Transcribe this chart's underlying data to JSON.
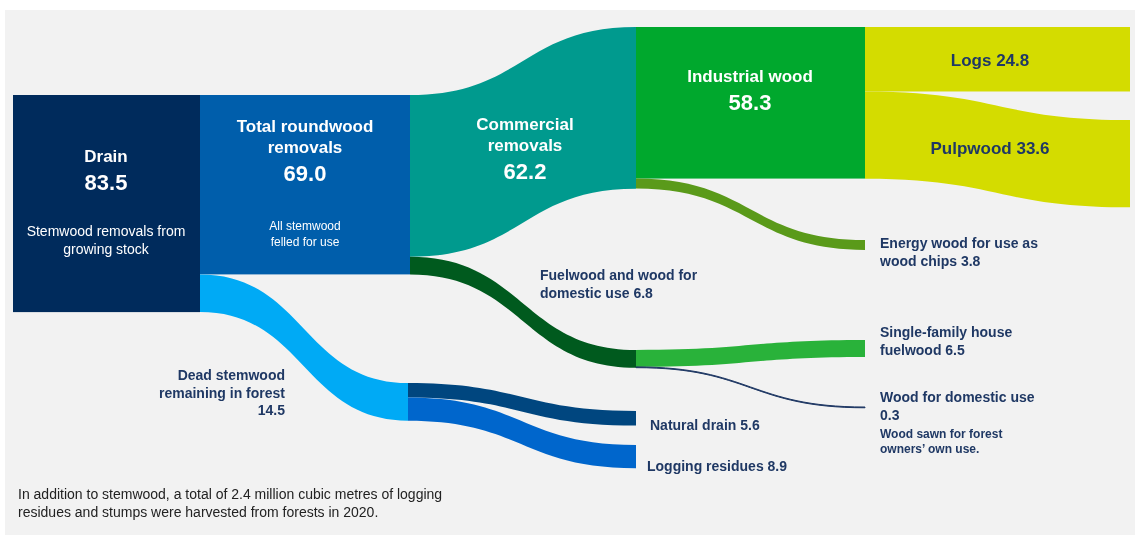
{
  "chart_data": {
    "type": "other",
    "categories": [
      "Drain",
      "Total roundwood removals",
      "Dead stemwood remaining in forest",
      "Commercial removals",
      "Fuelwood and wood for domestic use",
      "Industrial wood",
      "Energy wood for use as wood chips",
      "Logs",
      "Pulpwood",
      "Single-family house fuelwood",
      "Wood for domestic use",
      "Natural drain",
      "Logging residues"
    ],
    "values": [
      83.5,
      69.0,
      14.5,
      62.2,
      6.8,
      58.3,
      3.8,
      24.8,
      33.6,
      6.5,
      0.3,
      5.6,
      8.9
    ],
    "value_labels": [
      "83.5",
      "69.0",
      "14.5",
      "62.2",
      "6.8",
      "58.3",
      "3.8",
      "24.8",
      "33.6",
      "6.5",
      "0.3",
      "5.6",
      "8.9"
    ],
    "colors": [
      "#002b5c",
      "#005eab",
      "#00aaf5",
      "#009a8e",
      "#005a1e",
      "#00a82d",
      "#5a9a1a",
      "#d4dc00",
      "#d4dc00",
      "#29b23a",
      "#1f3864",
      "#00467f",
      "#0066cc"
    ],
    "annotations": [
      "Stemwood removals from growing stock",
      "All stemwood felled for use",
      "Wood sawn for forest owners’ own use.",
      "In addition to stemwood, a total of 2.4 million cubic metres of logging residues and stumps were harvested from forests in 2020."
    ]
  }
}
